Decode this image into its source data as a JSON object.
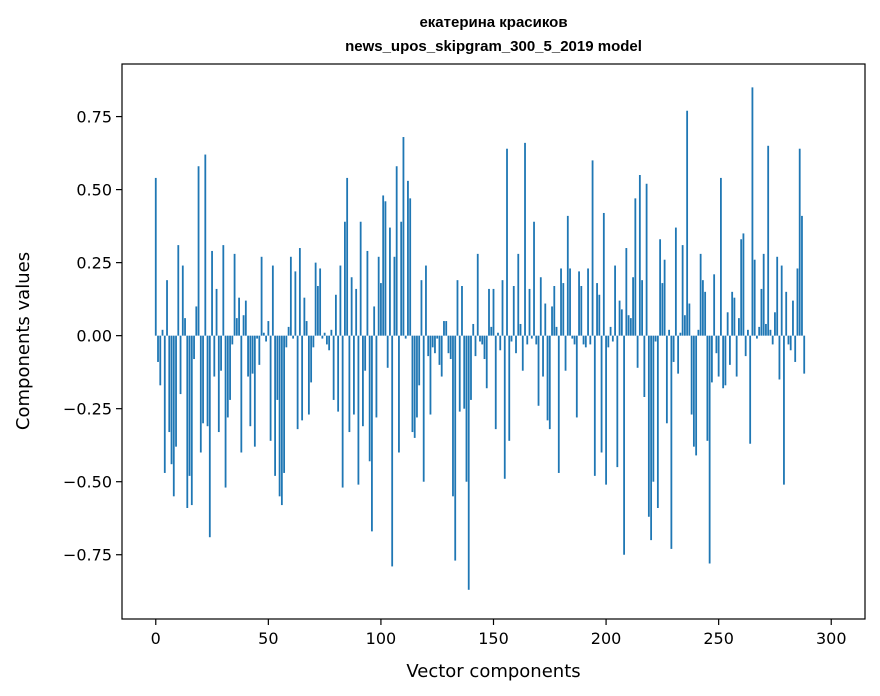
{
  "chart_data": {
    "type": "bar",
    "title": [
      "екатерина красиков",
      "news_upos_skipgram_300_5_2019 model"
    ],
    "xlabel": "Vector components",
    "ylabel": "Components values",
    "xlim": [
      -15,
      315
    ],
    "ylim": [
      -0.97,
      0.93
    ],
    "xticks": [
      0,
      50,
      100,
      150,
      200,
      250,
      300
    ],
    "xtick_labels": [
      "0",
      "50",
      "100",
      "150",
      "200",
      "250",
      "300"
    ],
    "yticks": [
      -0.75,
      -0.5,
      -0.25,
      0.0,
      0.25,
      0.5,
      0.75
    ],
    "ytick_labels": [
      "−0.75",
      "−0.50",
      "−0.25",
      "0.00",
      "0.25",
      "0.50",
      "0.75"
    ],
    "grid": false,
    "bar_color": "#1f77b4",
    "x_start": 0,
    "values": [
      0.54,
      -0.09,
      -0.17,
      0.02,
      -0.47,
      0.19,
      -0.33,
      -0.44,
      -0.55,
      -0.38,
      0.31,
      -0.2,
      0.24,
      0.06,
      -0.59,
      -0.48,
      -0.58,
      -0.08,
      0.1,
      0.58,
      -0.4,
      -0.3,
      0.62,
      -0.31,
      -0.69,
      0.29,
      -0.14,
      0.16,
      -0.33,
      -0.12,
      0.31,
      -0.52,
      -0.28,
      -0.22,
      -0.03,
      0.28,
      0.06,
      0.13,
      -0.4,
      0.07,
      0.12,
      -0.14,
      -0.31,
      -0.13,
      -0.38,
      -0.01,
      -0.1,
      0.27,
      0.01,
      -0.02,
      0.05,
      -0.36,
      0.24,
      -0.48,
      -0.22,
      -0.55,
      -0.58,
      -0.47,
      -0.04,
      0.03,
      0.27,
      -0.01,
      0.22,
      -0.32,
      0.3,
      -0.29,
      0.13,
      0.05,
      -0.27,
      -0.16,
      -0.04,
      0.25,
      0.17,
      0.23,
      -0.01,
      0.01,
      -0.03,
      -0.05,
      0.02,
      -0.22,
      0.14,
      -0.26,
      0.24,
      -0.52,
      0.39,
      0.54,
      -0.33,
      0.2,
      -0.27,
      0.16,
      -0.51,
      0.39,
      -0.31,
      -0.12,
      0.29,
      -0.43,
      -0.67,
      0.1,
      -0.28,
      0.27,
      0.18,
      0.48,
      0.46,
      -0.11,
      0.37,
      -0.79,
      0.27,
      0.58,
      -0.4,
      0.39,
      0.68,
      -0.01,
      0.53,
      0.47,
      -0.33,
      -0.35,
      -0.28,
      -0.17,
      0.19,
      -0.5,
      0.24,
      -0.07,
      -0.27,
      -0.04,
      -0.06,
      -0.01,
      -0.1,
      -0.14,
      0.05,
      0.05,
      -0.06,
      -0.08,
      -0.55,
      -0.77,
      0.19,
      -0.26,
      0.17,
      -0.25,
      -0.5,
      -0.87,
      -0.22,
      0.04,
      -0.07,
      0.28,
      -0.02,
      -0.03,
      -0.08,
      -0.18,
      0.16,
      0.03,
      0.16,
      -0.32,
      0.01,
      -0.05,
      0.19,
      -0.49,
      0.64,
      -0.36,
      -0.02,
      0.17,
      -0.06,
      0.28,
      0.04,
      -0.12,
      0.66,
      -0.03,
      0.16,
      -0.01,
      0.39,
      -0.03,
      -0.24,
      0.2,
      -0.14,
      0.11,
      -0.29,
      -0.32,
      0.1,
      0.17,
      0.03,
      -0.47,
      0.23,
      0.18,
      -0.12,
      0.41,
      0.23,
      -0.01,
      -0.03,
      -0.28,
      0.22,
      0.17,
      -0.03,
      -0.04,
      0.23,
      -0.03,
      0.6,
      -0.48,
      0.18,
      0.14,
      -0.4,
      0.42,
      -0.51,
      -0.04,
      0.03,
      -0.02,
      0.24,
      -0.45,
      0.12,
      0.09,
      -0.75,
      0.3,
      0.07,
      0.06,
      0.2,
      0.47,
      -0.11,
      0.55,
      0.19,
      -0.21,
      0.52,
      -0.62,
      -0.7,
      -0.5,
      -0.02,
      -0.59,
      0.33,
      0.18,
      0.26,
      -0.3,
      0.02,
      -0.73,
      -0.09,
      0.37,
      -0.13,
      0.01,
      0.31,
      0.07,
      0.77,
      0.11,
      -0.27,
      -0.38,
      -0.41,
      0.02,
      0.28,
      0.19,
      0.15,
      -0.36,
      -0.78,
      -0.16,
      0.21,
      -0.06,
      -0.14,
      0.54,
      -0.18,
      -0.17,
      0.08,
      -0.1,
      0.15,
      0.13,
      -0.14,
      0.06,
      0.33,
      0.35,
      -0.07,
      0.02,
      -0.37,
      0.85,
      0.26,
      -0.01,
      0.03,
      0.16,
      0.28,
      0.04,
      0.65,
      0.02,
      -0.03,
      0.08,
      0.27,
      -0.15,
      0.24,
      -0.51,
      0.15,
      -0.03,
      -0.05,
      0.12,
      -0.09,
      0.23,
      0.64,
      0.41,
      -0.13
    ]
  }
}
